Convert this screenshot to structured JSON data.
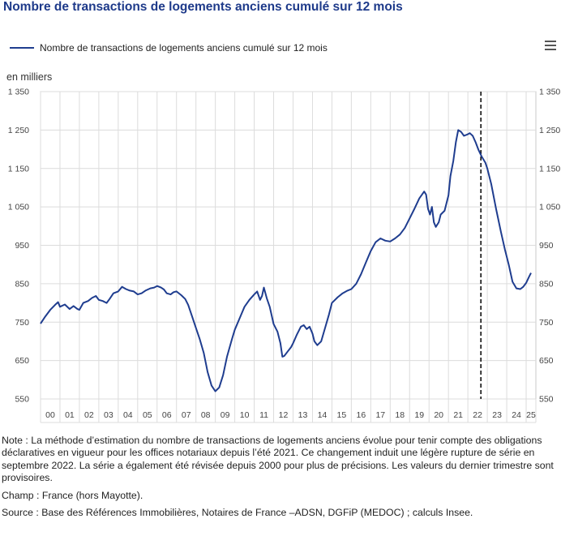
{
  "title": "Nombre de transactions de logements anciens cumulé sur 12 mois",
  "menu_icon": "hamburger-menu-icon",
  "colors": {
    "title": "#1e3a8a",
    "series": "#1f3d8f",
    "grid": "#dcdcdc"
  },
  "chart_data": {
    "type": "line",
    "title": "Nombre de transactions de logements anciens cumulé sur 12 mois",
    "ylabel": "en milliers",
    "ylim": [
      550,
      1350
    ],
    "yticks": [
      1350,
      1250,
      1150,
      1050,
      950,
      850,
      750,
      650,
      550
    ],
    "ytick_labels": [
      "1 350",
      "1 250",
      "1 150",
      "1 050",
      "950",
      "850",
      "750",
      "650",
      "550"
    ],
    "xlim": [
      2000,
      2025.5
    ],
    "x_labels": [
      "00",
      "01",
      "02",
      "03",
      "04",
      "05",
      "06",
      "07",
      "08",
      "09",
      "10",
      "11",
      "12",
      "13",
      "14",
      "15",
      "16",
      "17",
      "18",
      "19",
      "20",
      "21",
      "22",
      "23",
      "24",
      "25"
    ],
    "legend": "Nombre de transactions de logements anciens cumulé sur 12 mois",
    "legend_position": "top-left",
    "annotation": {
      "type": "vertical-dashed-line",
      "x": 2022.67,
      "meaning": "rupture de série (septembre 2022)"
    },
    "series": [
      {
        "name": "Nombre de transactions de logements anciens cumulé sur 12 mois",
        "points": [
          [
            2000.0,
            746
          ],
          [
            2000.25,
            765
          ],
          [
            2000.5,
            782
          ],
          [
            2000.75,
            795
          ],
          [
            2000.9,
            802
          ],
          [
            2001.0,
            790
          ],
          [
            2001.25,
            796
          ],
          [
            2001.5,
            784
          ],
          [
            2001.7,
            792
          ],
          [
            2001.9,
            784
          ],
          [
            2002.0,
            782
          ],
          [
            2002.2,
            800
          ],
          [
            2002.45,
            805
          ],
          [
            2002.65,
            813
          ],
          [
            2002.85,
            818
          ],
          [
            2003.0,
            808
          ],
          [
            2003.2,
            805
          ],
          [
            2003.4,
            800
          ],
          [
            2003.55,
            810
          ],
          [
            2003.75,
            825
          ],
          [
            2004.0,
            830
          ],
          [
            2004.2,
            842
          ],
          [
            2004.4,
            836
          ],
          [
            2004.6,
            832
          ],
          [
            2004.8,
            830
          ],
          [
            2005.0,
            822
          ],
          [
            2005.2,
            825
          ],
          [
            2005.4,
            832
          ],
          [
            2005.65,
            838
          ],
          [
            2005.85,
            840
          ],
          [
            2006.0,
            844
          ],
          [
            2006.2,
            840
          ],
          [
            2006.35,
            835
          ],
          [
            2006.5,
            825
          ],
          [
            2006.7,
            822
          ],
          [
            2006.85,
            828
          ],
          [
            2007.0,
            830
          ],
          [
            2007.25,
            820
          ],
          [
            2007.45,
            810
          ],
          [
            2007.6,
            795
          ],
          [
            2007.8,
            765
          ],
          [
            2008.0,
            735
          ],
          [
            2008.2,
            705
          ],
          [
            2008.4,
            670
          ],
          [
            2008.6,
            620
          ],
          [
            2008.8,
            585
          ],
          [
            2009.0,
            570
          ],
          [
            2009.2,
            580
          ],
          [
            2009.4,
            612
          ],
          [
            2009.6,
            660
          ],
          [
            2009.85,
            705
          ],
          [
            2010.0,
            730
          ],
          [
            2010.25,
            760
          ],
          [
            2010.5,
            790
          ],
          [
            2010.75,
            808
          ],
          [
            2011.0,
            822
          ],
          [
            2011.15,
            830
          ],
          [
            2011.3,
            808
          ],
          [
            2011.4,
            818
          ],
          [
            2011.5,
            840
          ],
          [
            2011.65,
            812
          ],
          [
            2011.8,
            790
          ],
          [
            2012.0,
            745
          ],
          [
            2012.2,
            725
          ],
          [
            2012.35,
            695
          ],
          [
            2012.45,
            660
          ],
          [
            2012.55,
            662
          ],
          [
            2012.7,
            672
          ],
          [
            2012.9,
            685
          ],
          [
            2013.0,
            695
          ],
          [
            2013.2,
            718
          ],
          [
            2013.4,
            738
          ],
          [
            2013.55,
            742
          ],
          [
            2013.7,
            732
          ],
          [
            2013.85,
            738
          ],
          [
            2014.0,
            720
          ],
          [
            2014.1,
            700
          ],
          [
            2014.25,
            690
          ],
          [
            2014.45,
            700
          ],
          [
            2014.65,
            735
          ],
          [
            2014.85,
            770
          ],
          [
            2015.0,
            800
          ],
          [
            2015.3,
            815
          ],
          [
            2015.55,
            825
          ],
          [
            2015.8,
            832
          ],
          [
            2016.0,
            836
          ],
          [
            2016.25,
            850
          ],
          [
            2016.5,
            875
          ],
          [
            2016.75,
            905
          ],
          [
            2017.0,
            935
          ],
          [
            2017.25,
            958
          ],
          [
            2017.5,
            968
          ],
          [
            2017.75,
            962
          ],
          [
            2018.0,
            960
          ],
          [
            2018.25,
            968
          ],
          [
            2018.5,
            978
          ],
          [
            2018.75,
            995
          ],
          [
            2019.0,
            1020
          ],
          [
            2019.25,
            1045
          ],
          [
            2019.5,
            1072
          ],
          [
            2019.75,
            1090
          ],
          [
            2019.85,
            1082
          ],
          [
            2019.95,
            1045
          ],
          [
            2020.05,
            1030
          ],
          [
            2020.15,
            1050
          ],
          [
            2020.25,
            1010
          ],
          [
            2020.35,
            998
          ],
          [
            2020.5,
            1010
          ],
          [
            2020.6,
            1030
          ],
          [
            2020.8,
            1040
          ],
          [
            2021.0,
            1080
          ],
          [
            2021.1,
            1130
          ],
          [
            2021.25,
            1170
          ],
          [
            2021.38,
            1218
          ],
          [
            2021.5,
            1250
          ],
          [
            2021.65,
            1245
          ],
          [
            2021.8,
            1235
          ],
          [
            2021.95,
            1238
          ],
          [
            2022.1,
            1242
          ],
          [
            2022.25,
            1235
          ],
          [
            2022.4,
            1218
          ],
          [
            2022.55,
            1198
          ],
          [
            2022.7,
            1182
          ],
          [
            2022.9,
            1165
          ],
          [
            2023.0,
            1150
          ],
          [
            2023.2,
            1110
          ],
          [
            2023.45,
            1045
          ],
          [
            2023.7,
            985
          ],
          [
            2023.9,
            940
          ],
          [
            2024.1,
            900
          ],
          [
            2024.3,
            855
          ],
          [
            2024.5,
            838
          ],
          [
            2024.7,
            836
          ],
          [
            2024.85,
            842
          ],
          [
            2025.0,
            852
          ],
          [
            2025.15,
            868
          ],
          [
            2025.25,
            878
          ]
        ]
      }
    ]
  },
  "notes": {
    "note": "Note : La méthode d’estimation du nombre de transactions de logements anciens évolue pour tenir compte des obligations déclaratives en vigueur pour les offices notariaux depuis l’été 2021. Ce changement induit une légère rupture de série en septembre 2022. La série a également été révisée depuis 2000 pour plus de précisions. Les valeurs du dernier trimestre sont provisoires.",
    "champ": "Champ : France (hors Mayotte).",
    "source": "Source : Base des Références Immobilières, Notaires de France –ADSN, DGFiP (MEDOC) ; calculs Insee."
  }
}
